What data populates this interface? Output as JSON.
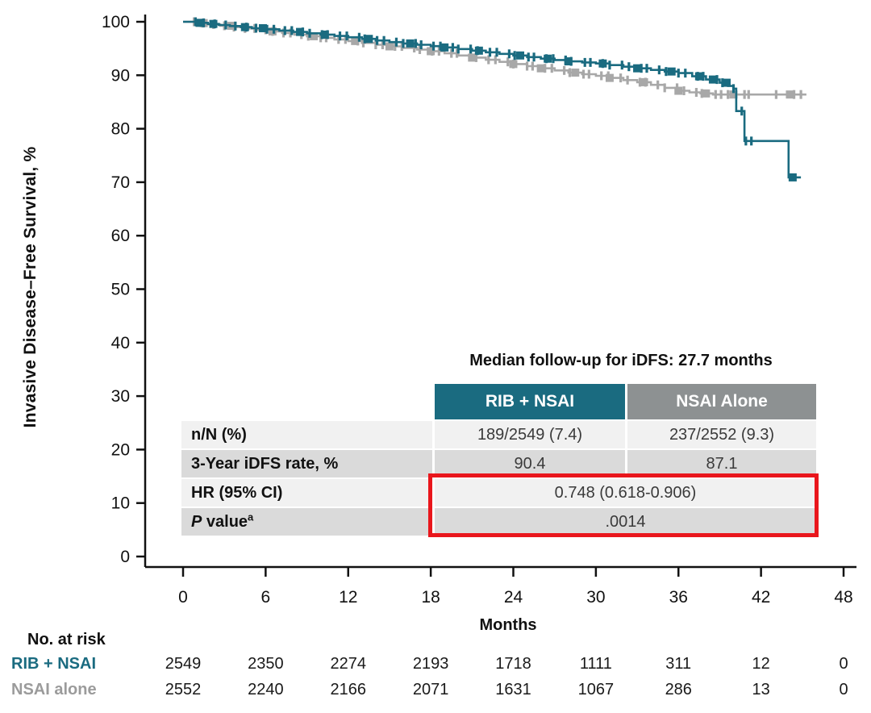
{
  "colors": {
    "rib_teal": "#1a6b80",
    "nsai_gray_curve": "#a8a8a8",
    "nsai_gray_header": "#8d9192",
    "risk_label_gray": "#9b9b9b",
    "red_box": "#e9161c",
    "row_light": "#f1f1f1",
    "row_dark": "#dadada",
    "axis_black": "#111111"
  },
  "median_note": "Median follow-up for iDFS: 27.7 months",
  "summary_table": {
    "columns": [
      "RIB + NSAI",
      "NSAI Alone"
    ],
    "rows": [
      {
        "label": "n/N (%)",
        "values": [
          "189/2549 (7.4)",
          "237/2552 (9.3)"
        ]
      },
      {
        "label": "3-Year iDFS rate, %",
        "values": [
          "90.4",
          "87.1"
        ]
      },
      {
        "label": "HR (95% CI)",
        "values": [
          "0.748 (0.618-0.906)"
        ]
      },
      {
        "label_italic": "P",
        "label_rest": " value",
        "label_sup": "a",
        "values": [
          ".0014"
        ]
      }
    ]
  },
  "at_risk": {
    "title": "No. at risk",
    "rows": [
      {
        "label": "RIB + NSAI",
        "color": "#1a6b80",
        "counts": [
          "2549",
          "2350",
          "2274",
          "2193",
          "1718",
          "1111",
          "311",
          "12",
          "0"
        ]
      },
      {
        "label": "NSAI alone",
        "color": "#9b9b9b",
        "counts": [
          "2552",
          "2240",
          "2166",
          "2071",
          "1631",
          "1067",
          "286",
          "13",
          "0"
        ]
      }
    ]
  },
  "chart_data": {
    "type": "line",
    "subtype": "kaplan-meier-step",
    "title": "",
    "xlabel": "Months",
    "ylabel": "Invasive Disease–Free Survival, %",
    "xlim": [
      0,
      48
    ],
    "ylim": [
      0,
      100
    ],
    "x_ticks": [
      0,
      6,
      12,
      18,
      24,
      30,
      36,
      42,
      48
    ],
    "y_ticks": [
      100,
      90,
      80,
      70,
      60,
      50,
      40,
      30,
      20,
      10,
      0
    ],
    "grid": false,
    "legend_position": "none",
    "annotations": [
      "Median follow-up for iDFS: 27.7 months"
    ],
    "series": [
      {
        "name": "RIB + NSAI",
        "color": "#1a6b80",
        "three_year_rate_pct": 90.4,
        "events_n_N_pct": "189/2549 (7.4)",
        "steps": [
          [
            0,
            100
          ],
          [
            1.0,
            99.8
          ],
          [
            1.8,
            99.6
          ],
          [
            2.6,
            99.4
          ],
          [
            3.4,
            99.2
          ],
          [
            4.2,
            99.0
          ],
          [
            5.0,
            98.8
          ],
          [
            6.0,
            98.6
          ],
          [
            7.0,
            98.35
          ],
          [
            8.0,
            98.1
          ],
          [
            9.0,
            97.85
          ],
          [
            10.0,
            97.6
          ],
          [
            11.0,
            97.35
          ],
          [
            12.0,
            97.1
          ],
          [
            13.0,
            96.8
          ],
          [
            14.0,
            96.5
          ],
          [
            15.0,
            96.2
          ],
          [
            16.0,
            95.95
          ],
          [
            17.0,
            95.7
          ],
          [
            18.0,
            95.45
          ],
          [
            19.0,
            95.2
          ],
          [
            20.0,
            94.9
          ],
          [
            21.0,
            94.6
          ],
          [
            22.0,
            94.3
          ],
          [
            23.0,
            94.0
          ],
          [
            24.0,
            93.7
          ],
          [
            25.0,
            93.4
          ],
          [
            26.0,
            93.1
          ],
          [
            27.0,
            92.85
          ],
          [
            28.0,
            92.6
          ],
          [
            29.0,
            92.4
          ],
          [
            30.0,
            92.2
          ],
          [
            31.0,
            91.9
          ],
          [
            32.0,
            91.6
          ],
          [
            33.0,
            91.3
          ],
          [
            34.0,
            91.0
          ],
          [
            35.0,
            90.7
          ],
          [
            36.0,
            90.4
          ],
          [
            37.0,
            89.8
          ],
          [
            38.0,
            89.2
          ],
          [
            39.0,
            88.6
          ],
          [
            39.6,
            88.0
          ],
          [
            40.0,
            87.5
          ],
          [
            40.2,
            83.3
          ],
          [
            40.8,
            77.7
          ],
          [
            44.0,
            70.9
          ]
        ],
        "end_month": 44.9,
        "censors": [
          0.9,
          1.5,
          2.3,
          3.1,
          3.8,
          4.6,
          5.3,
          6.1,
          6.6,
          7.4,
          7.9,
          8.7,
          9.2,
          10.1,
          10.5,
          11.4,
          11.9,
          12.8,
          13.2,
          14.1,
          14.6,
          15.5,
          16.0,
          16.9,
          17.3,
          18.2,
          18.7,
          19.6,
          20.0,
          20.9,
          21.4,
          22.3,
          22.8,
          23.7,
          24.1,
          25.1,
          25.5,
          26.4,
          26.9,
          27.8,
          28.2,
          29.2,
          29.6,
          30.5,
          31.0,
          31.9,
          32.4,
          33.3,
          33.7,
          34.6,
          35.1,
          36.0,
          36.5,
          37.4,
          37.8,
          38.8,
          39.2,
          40.0,
          40.6,
          40.9,
          41.3
        ],
        "block_censors": [
          1.2,
          2.2,
          4.5,
          5.8,
          8.5,
          10.3,
          13.5,
          16.5,
          19.0,
          21.5,
          24.5,
          26.5,
          28.0,
          30.5,
          33.0,
          35.5,
          37.5,
          38.5,
          39.5,
          44.3
        ]
      },
      {
        "name": "NSAI alone",
        "color": "#a8a8a8",
        "three_year_rate_pct": 87.1,
        "events_n_N_pct": "237/2552 (9.3)",
        "steps": [
          [
            0,
            100
          ],
          [
            0.9,
            99.75
          ],
          [
            1.8,
            99.5
          ],
          [
            2.7,
            99.25
          ],
          [
            3.6,
            99.0
          ],
          [
            4.5,
            98.75
          ],
          [
            5.4,
            98.5
          ],
          [
            6.3,
            98.2
          ],
          [
            7.2,
            97.9
          ],
          [
            8.1,
            97.6
          ],
          [
            9.0,
            97.3
          ],
          [
            10.0,
            97.0
          ],
          [
            11.0,
            96.7
          ],
          [
            12.0,
            96.4
          ],
          [
            13.0,
            96.05
          ],
          [
            14.0,
            95.7
          ],
          [
            15.0,
            95.4
          ],
          [
            16.0,
            95.1
          ],
          [
            17.0,
            94.8
          ],
          [
            18.0,
            94.5
          ],
          [
            19.0,
            94.1
          ],
          [
            20.0,
            93.7
          ],
          [
            21.0,
            93.3
          ],
          [
            22.0,
            92.9
          ],
          [
            23.0,
            92.5
          ],
          [
            24.0,
            92.1
          ],
          [
            25.0,
            91.7
          ],
          [
            26.0,
            91.3
          ],
          [
            27.0,
            90.9
          ],
          [
            28.0,
            90.5
          ],
          [
            29.0,
            90.2
          ],
          [
            30.0,
            89.9
          ],
          [
            31.0,
            89.5
          ],
          [
            32.0,
            89.1
          ],
          [
            33.0,
            88.7
          ],
          [
            34.0,
            88.2
          ],
          [
            35.0,
            87.65
          ],
          [
            36.0,
            87.1
          ],
          [
            36.8,
            86.8
          ],
          [
            37.6,
            86.6
          ],
          [
            38.5,
            86.4
          ]
        ],
        "end_month": 45.3,
        "censors": [
          0.8,
          1.4,
          2.2,
          3.0,
          3.7,
          4.5,
          5.2,
          6.0,
          6.5,
          7.3,
          7.8,
          8.6,
          9.1,
          10.0,
          10.4,
          11.3,
          11.8,
          12.7,
          13.1,
          14.0,
          14.5,
          15.4,
          15.9,
          16.8,
          17.2,
          18.1,
          18.6,
          19.5,
          19.9,
          20.9,
          21.3,
          22.2,
          22.7,
          23.6,
          24.0,
          25.0,
          25.4,
          26.3,
          26.8,
          27.7,
          28.1,
          29.1,
          29.5,
          30.4,
          30.9,
          31.8,
          32.3,
          33.2,
          33.6,
          34.5,
          35.0,
          35.9,
          36.4,
          37.3,
          37.7,
          38.7,
          39.1,
          39.6,
          40.8,
          41.1,
          43.1,
          44.4,
          44.9
        ],
        "block_censors": [
          1.5,
          3.5,
          6.5,
          9.5,
          12.5,
          15.0,
          18.0,
          21.0,
          24.0,
          26.0,
          28.5,
          31.0,
          33.5,
          36.0,
          38.0,
          40.0,
          44.1
        ]
      }
    ],
    "risk_table_months": [
      0,
      6,
      12,
      18,
      24,
      30,
      36,
      42,
      48
    ]
  },
  "layout_text": {
    "y_axis_title": "Invasive Disease–Free Survival, %",
    "x_axis_title": "Months"
  }
}
